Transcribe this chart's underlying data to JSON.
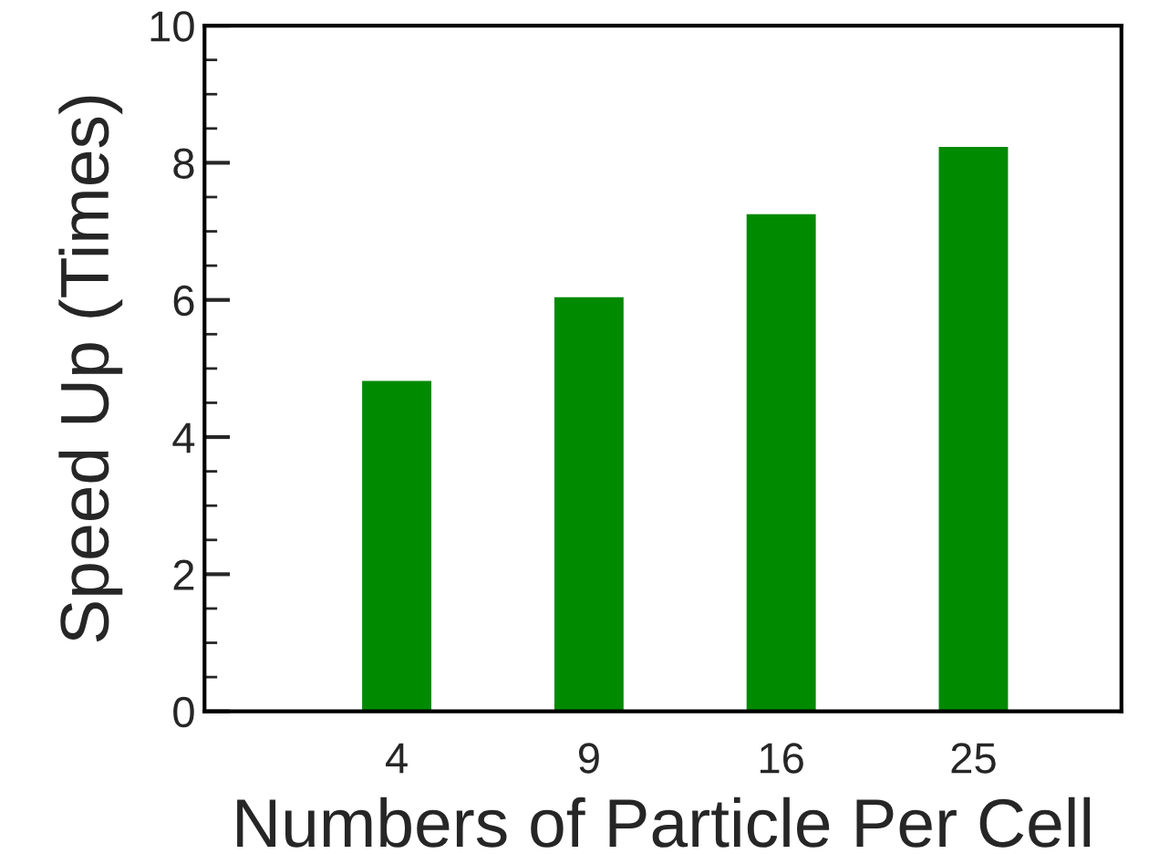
{
  "chart_data": {
    "type": "bar",
    "xlabel": "Numbers of Particle Per Cell",
    "ylabel": "Speed Up (Times)",
    "categories": [
      "4",
      "9",
      "16",
      "25"
    ],
    "values": [
      4.82,
      6.04,
      7.25,
      8.23
    ],
    "color": "#008a00",
    "ylim": [
      0,
      10
    ],
    "yticks": [
      0,
      2,
      4,
      6,
      8,
      10
    ],
    "grid": false,
    "legend": false
  }
}
